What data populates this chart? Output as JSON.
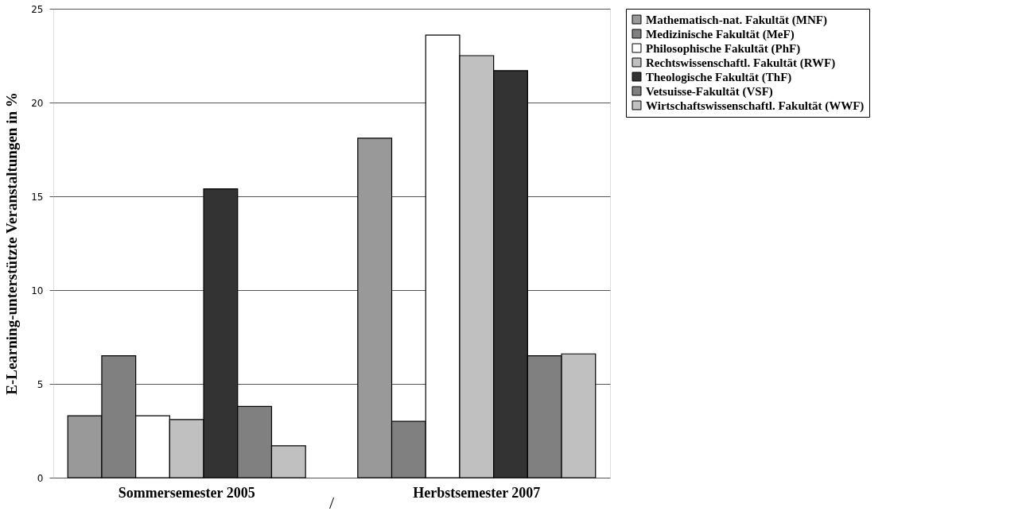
{
  "chart_data": {
    "type": "bar",
    "ylabel": "E-Learning-unterstützte Veranstaltungen in %",
    "categories": [
      "Sommersemester 2005",
      "Herbstsemester 2007"
    ],
    "series": [
      {
        "name": "Mathematisch-nat. Fakultät (MNF)",
        "color": "#999999",
        "values": [
          3.3,
          18.1
        ]
      },
      {
        "name": "Medizinische Fakultät (MeF)",
        "color": "#808080",
        "values": [
          6.5,
          3.0
        ]
      },
      {
        "name": "Philosophische Fakultät (PhF)",
        "color": "#ffffff",
        "values": [
          3.3,
          23.6
        ]
      },
      {
        "name": "Rechtswissenschaftl. Fakultät (RWF)",
        "color": "#c0c0c0",
        "values": [
          3.1,
          22.5
        ]
      },
      {
        "name": "Theologische Fakultät (ThF)",
        "color": "#333333",
        "values": [
          15.4,
          21.7
        ]
      },
      {
        "name": "Vetsuisse-Fakultät (VSF)",
        "color": "#808080",
        "values": [
          3.8,
          6.5
        ]
      },
      {
        "name": "Wirtschaftswissenschaftl. Fakultät (WWF)",
        "color": "#c0c0c0",
        "values": [
          1.7,
          6.6
        ]
      }
    ],
    "ylim": [
      0,
      25
    ],
    "yticks": [
      0,
      5,
      10,
      15,
      20,
      25
    ],
    "grid": "y",
    "legend": "right",
    "annotations": [
      "/"
    ]
  }
}
